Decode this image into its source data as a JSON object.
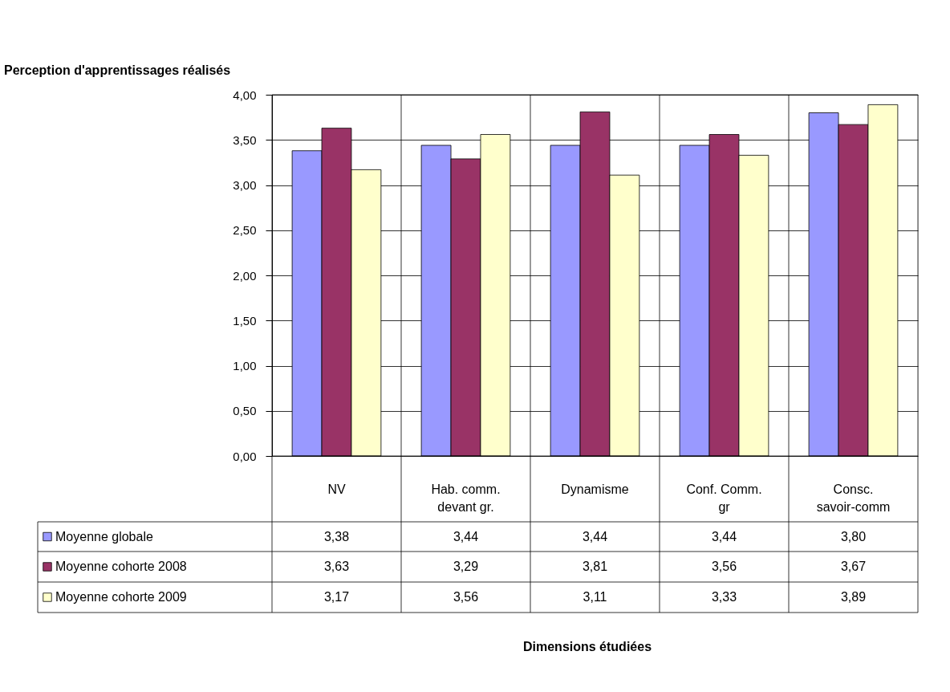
{
  "chart_data": {
    "type": "bar",
    "ylabel": "Perception d'apprentissages réalisés",
    "annotations": [
      "Dimensions étudiées"
    ],
    "categories": [
      "NV",
      "Hab. comm. devant gr.",
      "Dynamisme",
      "Conf. Comm. gr",
      "Consc. savoir-comm"
    ],
    "series": [
      {
        "name": "Moyenne globale",
        "color": "#9999ff",
        "values": [
          3.38,
          3.44,
          3.44,
          3.44,
          3.8
        ],
        "value_labels": [
          "3,38",
          "3,44",
          "3,44",
          "3,44",
          "3,80"
        ]
      },
      {
        "name": "Moyenne cohorte 2008",
        "color": "#993366",
        "values": [
          3.63,
          3.29,
          3.81,
          3.56,
          3.67
        ],
        "value_labels": [
          "3,63",
          "3,29",
          "3,81",
          "3,56",
          "3,67"
        ]
      },
      {
        "name": "Moyenne cohorte 2009",
        "color": "#ffffcc",
        "values": [
          3.17,
          3.56,
          3.11,
          3.33,
          3.89
        ],
        "value_labels": [
          "3,17",
          "3,56",
          "3,11",
          "3,33",
          "3,89"
        ]
      }
    ],
    "ylim": [
      0,
      4
    ],
    "yticks": [
      {
        "value": 0,
        "label": "0,00"
      },
      {
        "value": 0.5,
        "label": "0,50"
      },
      {
        "value": 1,
        "label": "1,00"
      },
      {
        "value": 1.5,
        "label": "1,50"
      },
      {
        "value": 2,
        "label": "2,00"
      },
      {
        "value": 2.5,
        "label": "2,50"
      },
      {
        "value": 3,
        "label": "3,00"
      },
      {
        "value": 3.5,
        "label": "3,50"
      },
      {
        "value": 4,
        "label": "4,00"
      }
    ],
    "grid": "y",
    "legend": "bottom left"
  }
}
